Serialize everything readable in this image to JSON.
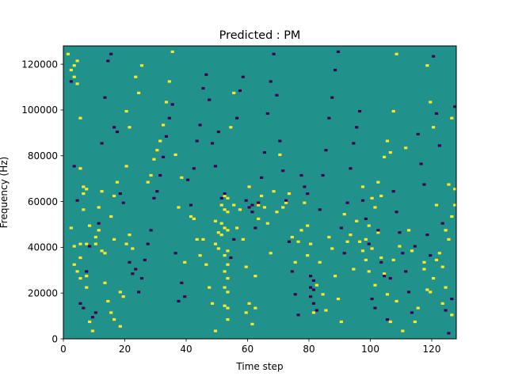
{
  "chart_data": {
    "type": "heatmap",
    "title": "Predicted : PM",
    "xlabel": "Time step",
    "ylabel": "Frequency (Hz)",
    "xlim": [
      0,
      128
    ],
    "ylim": [
      0,
      128000
    ],
    "x_ticks": [
      0,
      20,
      40,
      60,
      80,
      100,
      120
    ],
    "x_tick_labels": [
      "0",
      "20",
      "40",
      "60",
      "80",
      "100",
      "120"
    ],
    "y_ticks": [
      0,
      20000,
      40000,
      60000,
      80000,
      100000,
      120000
    ],
    "y_tick_labels": [
      "0",
      "20000",
      "40000",
      "60000",
      "80000",
      "100000",
      "120000"
    ],
    "grid": false,
    "legend": "none",
    "colormap": "viridis",
    "n_time_steps": 128,
    "n_frequency_bins": 128,
    "bin_width_hz": 1000,
    "background_value": 0.5,
    "colors": {
      "low": "#440154",
      "mid": "#21918c",
      "high": "#fde725"
    },
    "cells_description": "sparse cells with value 1 (yellow) and 0 (purple) on a 0.5 (teal) background; each cell spans one time step and one 1000 Hz bin",
    "high_cells": [
      [
        1,
        124
      ],
      [
        2,
        117
      ],
      [
        3,
        114
      ],
      [
        3,
        119
      ],
      [
        4,
        111
      ],
      [
        4,
        121
      ],
      [
        5,
        96
      ],
      [
        5,
        74
      ],
      [
        6,
        66
      ],
      [
        7,
        41
      ],
      [
        8,
        49
      ],
      [
        10,
        41
      ],
      [
        11,
        47
      ],
      [
        13,
        37
      ],
      [
        14,
        16
      ],
      [
        15,
        11
      ],
      [
        16,
        8
      ],
      [
        18,
        5
      ],
      [
        2,
        48
      ],
      [
        3,
        40
      ],
      [
        3,
        32
      ],
      [
        4,
        29
      ],
      [
        5,
        26
      ],
      [
        7,
        22
      ],
      [
        8,
        7
      ],
      [
        9,
        3
      ],
      [
        12,
        38
      ],
      [
        13,
        24
      ],
      [
        16,
        62
      ],
      [
        17,
        68
      ],
      [
        20,
        75
      ],
      [
        20,
        99
      ],
      [
        21,
        92
      ],
      [
        23,
        114
      ],
      [
        24,
        107
      ],
      [
        25,
        119
      ],
      [
        5,
        41
      ],
      [
        5,
        35
      ],
      [
        6,
        63
      ],
      [
        6,
        56
      ],
      [
        7,
        27
      ],
      [
        7,
        65
      ],
      [
        10,
        44
      ],
      [
        11,
        57
      ],
      [
        12,
        64
      ],
      [
        15,
        53
      ],
      [
        16,
        43
      ],
      [
        18,
        20
      ],
      [
        19,
        18
      ],
      [
        20,
        41
      ],
      [
        21,
        45
      ],
      [
        22,
        39
      ],
      [
        27,
        68
      ],
      [
        28,
        71
      ],
      [
        29,
        78
      ],
      [
        30,
        82
      ],
      [
        31,
        86
      ],
      [
        32,
        93
      ],
      [
        33,
        103
      ],
      [
        34,
        112
      ],
      [
        35,
        125
      ],
      [
        36,
        80
      ],
      [
        37,
        57
      ],
      [
        38,
        70
      ],
      [
        39,
        33
      ],
      [
        41,
        53
      ],
      [
        42,
        52
      ],
      [
        43,
        43
      ],
      [
        44,
        36
      ],
      [
        45,
        43
      ],
      [
        46,
        32
      ],
      [
        47,
        22
      ],
      [
        48,
        15
      ],
      [
        49,
        3
      ],
      [
        49,
        51
      ],
      [
        49,
        41
      ],
      [
        50,
        46
      ],
      [
        50,
        39
      ],
      [
        51,
        58
      ],
      [
        51,
        50
      ],
      [
        51,
        45
      ],
      [
        52,
        62
      ],
      [
        52,
        56
      ],
      [
        52,
        48
      ],
      [
        52,
        36
      ],
      [
        52,
        29
      ],
      [
        52,
        22
      ],
      [
        52,
        14
      ],
      [
        53,
        61
      ],
      [
        53,
        55
      ],
      [
        53,
        47
      ],
      [
        53,
        38
      ],
      [
        53,
        32
      ],
      [
        53,
        26
      ],
      [
        53,
        20
      ],
      [
        53,
        13
      ],
      [
        53,
        8
      ],
      [
        54,
        92
      ],
      [
        55,
        107
      ],
      [
        55,
        58
      ],
      [
        56,
        48
      ],
      [
        57,
        56
      ],
      [
        58,
        43
      ],
      [
        59,
        31
      ],
      [
        59,
        11
      ],
      [
        60,
        66
      ],
      [
        60,
        15
      ],
      [
        61,
        6
      ],
      [
        62,
        13
      ],
      [
        62,
        27
      ],
      [
        63,
        52
      ],
      [
        63,
        58
      ],
      [
        64,
        62
      ],
      [
        65,
        57
      ],
      [
        66,
        50
      ],
      [
        67,
        37
      ],
      [
        68,
        64
      ],
      [
        69,
        55
      ],
      [
        70,
        80
      ],
      [
        71,
        57
      ],
      [
        72,
        59
      ],
      [
        73,
        63
      ],
      [
        74,
        44
      ],
      [
        75,
        33
      ],
      [
        76,
        42
      ],
      [
        77,
        47
      ],
      [
        78,
        59
      ],
      [
        79,
        49
      ],
      [
        79,
        36
      ],
      [
        80,
        41
      ],
      [
        81,
        11
      ],
      [
        82,
        23
      ],
      [
        83,
        33
      ],
      [
        84,
        19
      ],
      [
        85,
        12
      ],
      [
        86,
        44
      ],
      [
        87,
        39
      ],
      [
        88,
        27
      ],
      [
        89,
        17
      ],
      [
        90,
        7
      ],
      [
        91,
        54
      ],
      [
        92,
        42
      ],
      [
        93,
        45
      ],
      [
        94,
        30
      ],
      [
        95,
        51
      ],
      [
        96,
        42
      ],
      [
        97,
        38
      ],
      [
        98,
        34
      ],
      [
        99,
        49
      ],
      [
        100,
        61
      ],
      [
        101,
        57
      ],
      [
        102,
        68
      ],
      [
        103,
        62
      ],
      [
        104,
        79
      ],
      [
        105,
        86
      ],
      [
        106,
        81
      ],
      [
        107,
        99
      ],
      [
        108,
        124
      ],
      [
        97,
        66
      ],
      [
        98,
        43
      ],
      [
        99,
        29
      ],
      [
        100,
        39
      ],
      [
        101,
        23
      ],
      [
        102,
        46
      ],
      [
        103,
        35
      ],
      [
        104,
        28
      ],
      [
        105,
        19
      ],
      [
        106,
        7
      ],
      [
        107,
        34
      ],
      [
        108,
        16
      ],
      [
        109,
        40
      ],
      [
        110,
        3
      ],
      [
        111,
        83
      ],
      [
        112,
        47
      ],
      [
        113,
        38
      ],
      [
        114,
        7
      ],
      [
        115,
        13
      ],
      [
        118,
        119
      ],
      [
        119,
        103
      ],
      [
        120,
        92
      ],
      [
        121,
        58
      ],
      [
        122,
        37
      ],
      [
        123,
        31
      ],
      [
        124,
        22
      ],
      [
        125,
        43
      ],
      [
        126,
        53
      ],
      [
        126,
        96
      ],
      [
        127,
        65
      ],
      [
        117,
        30
      ],
      [
        117,
        33
      ],
      [
        118,
        21
      ],
      [
        119,
        20
      ],
      [
        120,
        26
      ],
      [
        121,
        34
      ],
      [
        123,
        15
      ],
      [
        124,
        47
      ],
      [
        125,
        67
      ],
      [
        126,
        10
      ],
      [
        127,
        58
      ]
    ],
    "low_cells": [
      [
        2,
        112
      ],
      [
        3,
        75
      ],
      [
        4,
        60
      ],
      [
        5,
        15
      ],
      [
        6,
        13
      ],
      [
        7,
        29
      ],
      [
        8,
        40
      ],
      [
        9,
        9
      ],
      [
        10,
        11
      ],
      [
        11,
        50
      ],
      [
        12,
        85
      ],
      [
        13,
        105
      ],
      [
        14,
        121
      ],
      [
        15,
        124
      ],
      [
        16,
        92
      ],
      [
        17,
        90
      ],
      [
        18,
        63
      ],
      [
        19,
        59
      ],
      [
        21,
        33
      ],
      [
        22,
        28
      ],
      [
        23,
        30
      ],
      [
        24,
        20
      ],
      [
        25,
        26
      ],
      [
        26,
        34
      ],
      [
        27,
        41
      ],
      [
        28,
        47
      ],
      [
        29,
        61
      ],
      [
        30,
        64
      ],
      [
        31,
        71
      ],
      [
        32,
        79
      ],
      [
        33,
        88
      ],
      [
        34,
        96
      ],
      [
        35,
        102
      ],
      [
        36,
        37
      ],
      [
        37,
        16
      ],
      [
        38,
        24
      ],
      [
        39,
        18
      ],
      [
        40,
        69
      ],
      [
        41,
        58
      ],
      [
        42,
        74
      ],
      [
        43,
        86
      ],
      [
        44,
        93
      ],
      [
        45,
        109
      ],
      [
        46,
        115
      ],
      [
        47,
        104
      ],
      [
        48,
        85
      ],
      [
        49,
        75
      ],
      [
        50,
        90
      ],
      [
        51,
        61
      ],
      [
        52,
        63
      ],
      [
        54,
        35
      ],
      [
        55,
        43
      ],
      [
        56,
        96
      ],
      [
        57,
        108
      ],
      [
        58,
        114
      ],
      [
        59,
        60
      ],
      [
        60,
        57
      ],
      [
        61,
        58
      ],
      [
        61,
        55
      ],
      [
        62,
        48
      ],
      [
        63,
        59
      ],
      [
        64,
        70
      ],
      [
        65,
        81
      ],
      [
        66,
        98
      ],
      [
        67,
        112
      ],
      [
        68,
        124
      ],
      [
        69,
        106
      ],
      [
        70,
        86
      ],
      [
        71,
        73
      ],
      [
        72,
        60
      ],
      [
        73,
        42
      ],
      [
        74,
        29
      ],
      [
        75,
        19
      ],
      [
        76,
        10
      ],
      [
        77,
        71
      ],
      [
        78,
        66
      ],
      [
        79,
        63
      ],
      [
        80,
        27
      ],
      [
        80,
        22
      ],
      [
        80,
        18
      ],
      [
        81,
        25
      ],
      [
        81,
        21
      ],
      [
        81,
        15
      ],
      [
        82,
        12
      ],
      [
        83,
        56
      ],
      [
        84,
        71
      ],
      [
        85,
        82
      ],
      [
        86,
        96
      ],
      [
        87,
        105
      ],
      [
        88,
        117
      ],
      [
        89,
        125
      ],
      [
        90,
        48
      ],
      [
        91,
        37
      ],
      [
        92,
        59
      ],
      [
        93,
        74
      ],
      [
        94,
        85
      ],
      [
        95,
        92
      ],
      [
        96,
        99
      ],
      [
        97,
        60
      ],
      [
        98,
        52
      ],
      [
        99,
        41
      ],
      [
        100,
        17
      ],
      [
        101,
        13
      ],
      [
        102,
        47
      ],
      [
        103,
        33
      ],
      [
        104,
        27
      ],
      [
        105,
        8
      ],
      [
        106,
        26
      ],
      [
        107,
        64
      ],
      [
        108,
        55
      ],
      [
        109,
        46
      ],
      [
        110,
        37
      ],
      [
        111,
        29
      ],
      [
        112,
        20
      ],
      [
        113,
        11
      ],
      [
        114,
        40
      ],
      [
        115,
        89
      ],
      [
        116,
        76
      ],
      [
        117,
        67
      ],
      [
        118,
        45
      ],
      [
        119,
        36
      ],
      [
        120,
        123
      ],
      [
        121,
        98
      ],
      [
        122,
        84
      ],
      [
        123,
        50
      ],
      [
        124,
        12
      ],
      [
        125,
        2
      ],
      [
        126,
        17
      ],
      [
        127,
        101
      ]
    ]
  }
}
